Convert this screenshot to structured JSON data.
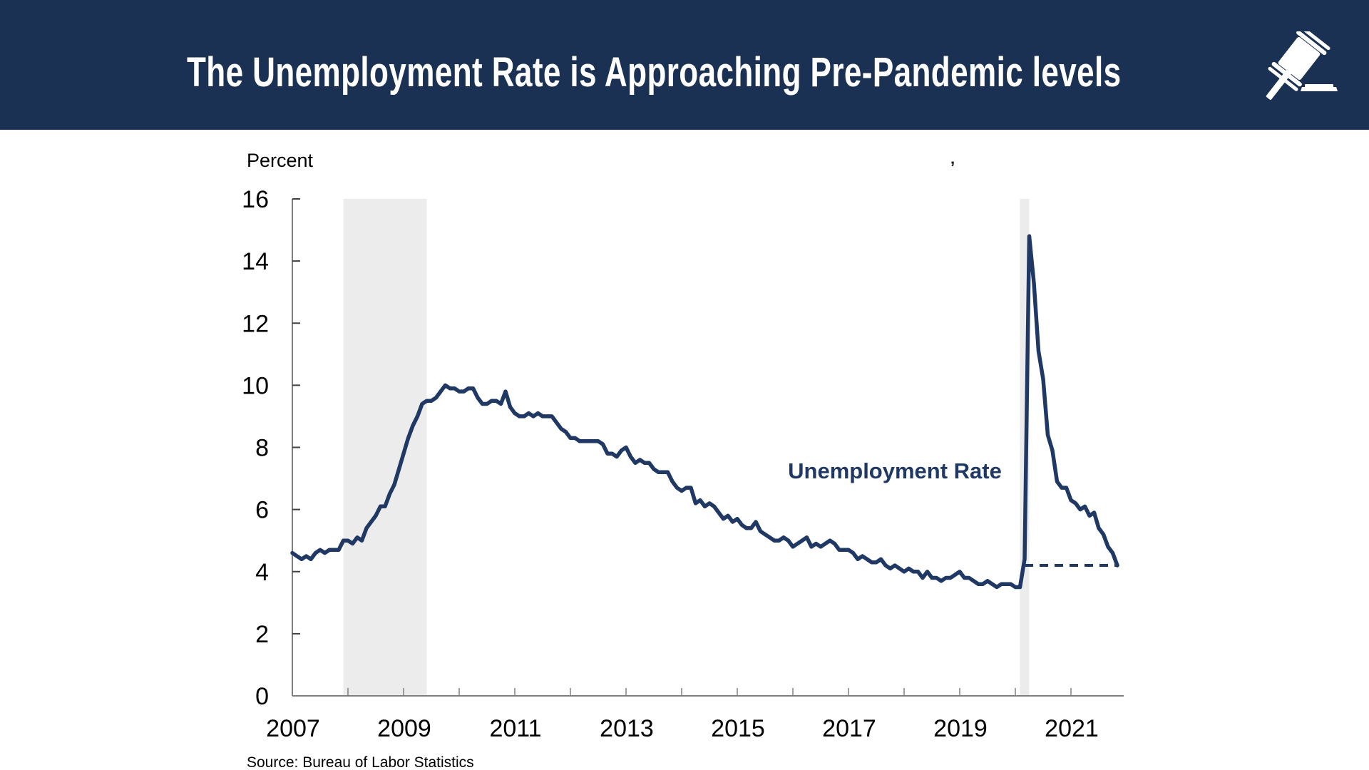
{
  "header": {
    "title": "The Unemployment Rate is Approaching Pre-Pandemic levels",
    "icon": "gavel-icon",
    "background_color": "#1b3153",
    "text_color": "#ffffff"
  },
  "chart_data": {
    "type": "line",
    "title": "",
    "ylabel": "Percent",
    "xlabel": "",
    "ylim": [
      0,
      16
    ],
    "yticks": [
      "0",
      "2",
      "4",
      "6",
      "8",
      "10",
      "12",
      "14",
      "16"
    ],
    "xlim": [
      2007,
      2021.95
    ],
    "xticks": [
      2007,
      2008,
      2009,
      2010,
      2011,
      2012,
      2013,
      2014,
      2015,
      2016,
      2017,
      2018,
      2019,
      2020,
      2021
    ],
    "xtick_labels": [
      "2007",
      "2009",
      "2011",
      "2013",
      "2015",
      "2017",
      "2019",
      "2021"
    ],
    "xtick_label_years": [
      2007,
      2009,
      2011,
      2013,
      2015,
      2017,
      2019,
      2021
    ],
    "grid": false,
    "line_color": "#1f3864",
    "recession_color": "#ececec",
    "recessions": [
      {
        "start": 2007.917,
        "end": 2009.417
      },
      {
        "start": 2020.083,
        "end": 2020.25
      }
    ],
    "series": [
      {
        "name": "Unemployment Rate",
        "start": "2007-01",
        "frequency": "monthly",
        "values": [
          4.6,
          4.5,
          4.4,
          4.5,
          4.4,
          4.6,
          4.7,
          4.6,
          4.7,
          4.7,
          4.7,
          5.0,
          5.0,
          4.9,
          5.1,
          5.0,
          5.4,
          5.6,
          5.8,
          6.1,
          6.1,
          6.5,
          6.8,
          7.3,
          7.8,
          8.3,
          8.7,
          9.0,
          9.4,
          9.5,
          9.5,
          9.6,
          9.8,
          10.0,
          9.9,
          9.9,
          9.8,
          9.8,
          9.9,
          9.9,
          9.6,
          9.4,
          9.4,
          9.5,
          9.5,
          9.4,
          9.8,
          9.3,
          9.1,
          9.0,
          9.0,
          9.1,
          9.0,
          9.1,
          9.0,
          9.0,
          9.0,
          8.8,
          8.6,
          8.5,
          8.3,
          8.3,
          8.2,
          8.2,
          8.2,
          8.2,
          8.2,
          8.1,
          7.8,
          7.8,
          7.7,
          7.9,
          8.0,
          7.7,
          7.5,
          7.6,
          7.5,
          7.5,
          7.3,
          7.2,
          7.2,
          7.2,
          6.9,
          6.7,
          6.6,
          6.7,
          6.7,
          6.2,
          6.3,
          6.1,
          6.2,
          6.1,
          5.9,
          5.7,
          5.8,
          5.6,
          5.7,
          5.5,
          5.4,
          5.4,
          5.6,
          5.3,
          5.2,
          5.1,
          5.0,
          5.0,
          5.1,
          5.0,
          4.8,
          4.9,
          5.0,
          5.1,
          4.8,
          4.9,
          4.8,
          4.9,
          5.0,
          4.9,
          4.7,
          4.7,
          4.7,
          4.6,
          4.4,
          4.5,
          4.4,
          4.3,
          4.3,
          4.4,
          4.2,
          4.1,
          4.2,
          4.1,
          4.0,
          4.1,
          4.0,
          4.0,
          3.8,
          4.0,
          3.8,
          3.8,
          3.7,
          3.8,
          3.8,
          3.9,
          4.0,
          3.8,
          3.8,
          3.7,
          3.6,
          3.6,
          3.7,
          3.6,
          3.5,
          3.6,
          3.6,
          3.6,
          3.5,
          3.5,
          4.4,
          14.8,
          13.3,
          11.1,
          10.2,
          8.4,
          7.9,
          6.9,
          6.7,
          6.7,
          6.3,
          6.2,
          6.0,
          6.1,
          5.8,
          5.9,
          5.4,
          5.2,
          4.8,
          4.6,
          4.2
        ]
      }
    ],
    "reference_line": {
      "value": 4.2,
      "start": 2020.167,
      "end": 2021.833,
      "style": "dashed"
    },
    "annotations": [
      {
        "text": "Unemployment Rate",
        "x": 2015.6,
        "y": 7.2
      }
    ],
    "stray_mark": "ʼ",
    "source": "Source: Bureau of Labor Statistics"
  }
}
